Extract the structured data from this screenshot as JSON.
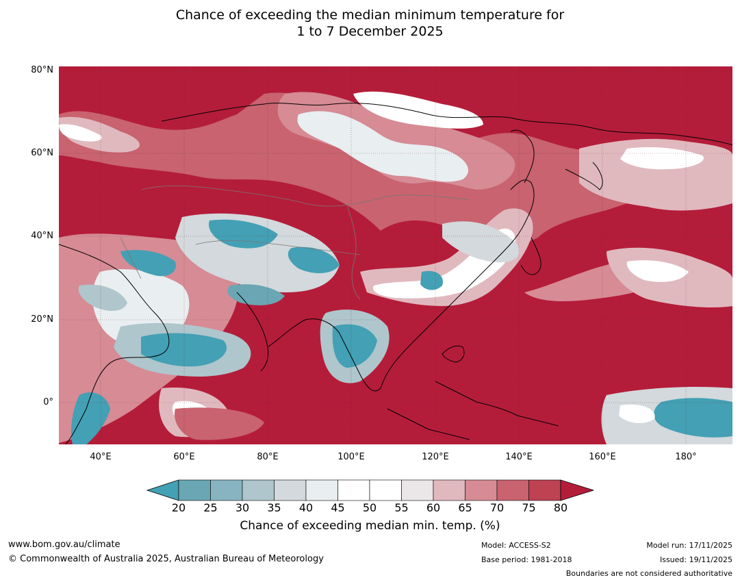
{
  "title_line1": "Chance of exceeding the median minimum temperature for",
  "title_line2": "1 to 7 December 2025",
  "map": {
    "lat_ticks": [
      "80°N",
      "60°N",
      "40°N",
      "20°N",
      "0°"
    ],
    "lon_ticks": [
      "40°E",
      "60°E",
      "80°E",
      "100°E",
      "120°E",
      "140°E",
      "160°E",
      "180°"
    ],
    "region": "Asia and western Pacific",
    "extent": {
      "lon_min": 30,
      "lon_max": 191,
      "lat_min": -10,
      "lat_max": 81
    }
  },
  "colorbar": {
    "ticks": [
      "20",
      "25",
      "30",
      "35",
      "40",
      "45",
      "50",
      "55",
      "60",
      "65",
      "70",
      "75",
      "80"
    ],
    "colors": [
      "#44a0b4",
      "#6aa6b3",
      "#88b4c1",
      "#aec6cc",
      "#d3d9dc",
      "#e9eef0",
      "#ffffff",
      "#ffffff",
      "#ebe6e8",
      "#e0b9bf",
      "#d68b95",
      "#c8636f",
      "#bd4252",
      "#b41d3a"
    ],
    "label": "Chance of exceeding median min. temp. (%)"
  },
  "footer": {
    "website": "www.bom.gov.au/climate",
    "copyright": "© Commonwealth of Australia 2025, Australian Bureau of Meteorology",
    "model": "Model: ACCESS-S2",
    "base_period": "Base period: 1981-2018",
    "model_run": "Model run: 17/11/2025",
    "issued": "Issued: 19/11/2025",
    "boundaries_note": "Boundaries are not considered authoritative"
  }
}
